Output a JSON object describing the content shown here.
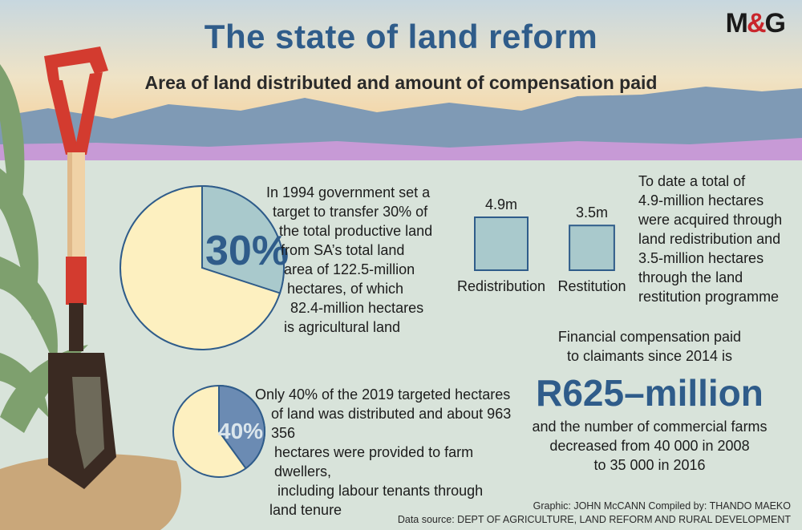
{
  "logo": {
    "m": "M",
    "amp": "&",
    "g": "G"
  },
  "title": "The state of land reform",
  "subtitle": "Area of land distributed and amount of compensation paid",
  "target": {
    "percent_label": "30%",
    "percent_value": 30,
    "lines": [
      "In 1994 government set a",
      "target to transfer 30% of",
      "the total productive land",
      "from SA’s total land",
      "area  of 122.5-million",
      "hectares, of which",
      "82.4-million hectares",
      "is agricultural land"
    ]
  },
  "distributed": {
    "percent_label": "40%",
    "percent_value": 40,
    "lines": [
      "Only 40% of the 2019 targeted hectares",
      "of land was distributed and about 963 356",
      "hectares were provided to farm dwellers,",
      "including labour tenants through",
      "land tenure"
    ]
  },
  "chart_data": {
    "type": "bar",
    "categories": [
      "Redistribution",
      "Restitution"
    ],
    "values": [
      4.9,
      3.5
    ],
    "value_labels": [
      "4.9m",
      "3.5m"
    ],
    "unit": "million hectares"
  },
  "acquired": {
    "lines": [
      "To date a total of",
      "4.9-million hectares",
      "were acquired through",
      "land redistribution and",
      "3.5-million hectares",
      "through the land",
      "restitution programme"
    ]
  },
  "compensation": {
    "intro": [
      "Financial compensation paid",
      "to claimants since 2014 is"
    ],
    "amount": "R625–million",
    "outro": [
      "and the number of commercial farms",
      "decreased from 40 000 in 2008",
      "to 35 000 in 2016"
    ]
  },
  "credits": {
    "line1": "Graphic: JOHN McCANN  Compiled by: THANDO MAEKO",
    "line2": "Data source: DEPT OF AGRICULTURE, LAND REFORM AND RURAL DEVELOPMENT"
  },
  "colors": {
    "accent": "#2f5c8a",
    "pie_fill": "#fdf0c0",
    "pie_slice_30": "#a9c9cc",
    "pie_slice_40": "#6b8bb3",
    "box_fill": "#a9c9cc"
  }
}
